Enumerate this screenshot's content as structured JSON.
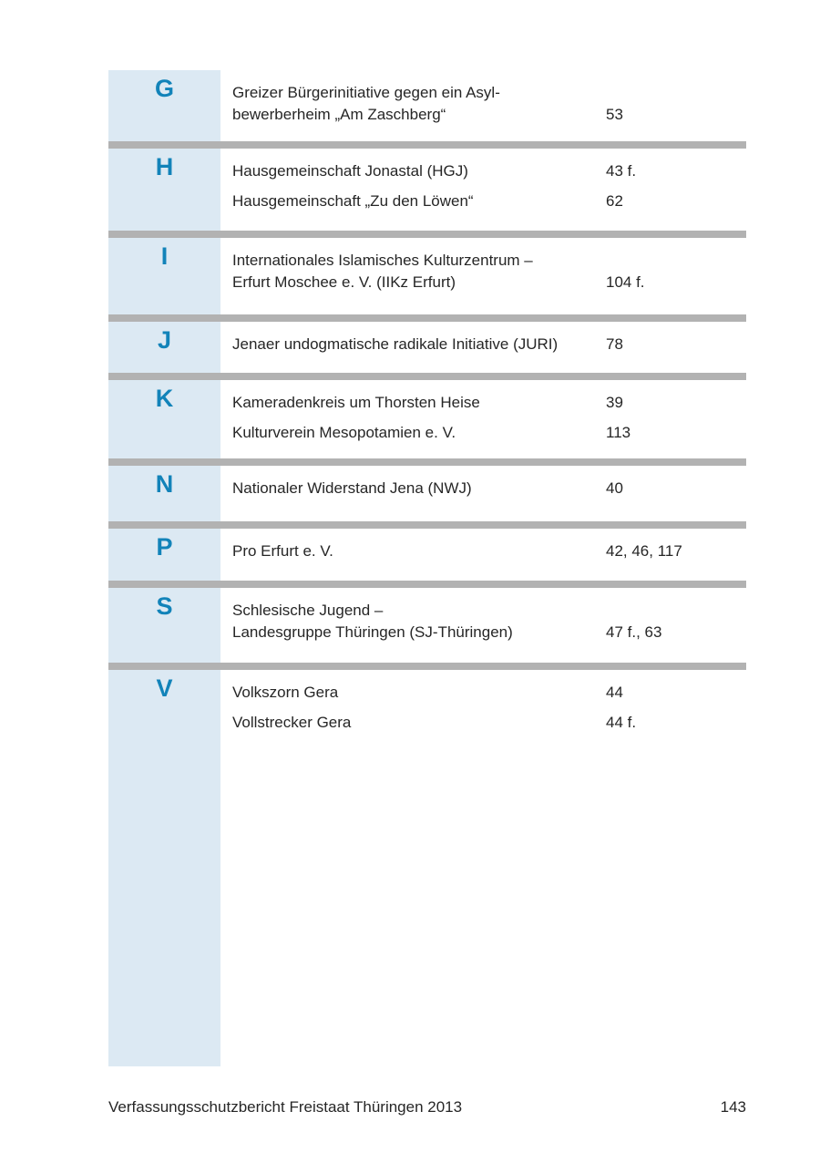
{
  "colors": {
    "letter_blue": "#1283b9",
    "strip_background": "#dce9f3",
    "divider_gray": "#b2b2b2",
    "text": "#262626"
  },
  "index": {
    "sections": [
      {
        "letter": "G",
        "entries": [
          {
            "name": "Greizer Bürgerinitiative gegen ein Asyl-\nbewerberheim „Am Zaschberg“",
            "pages": "53"
          }
        ]
      },
      {
        "letter": "H",
        "entries": [
          {
            "name": "Hausgemeinschaft Jonastal (HGJ)",
            "pages": "43 f."
          },
          {
            "name": "Hausgemeinschaft „Zu den Löwen“",
            "pages": "62"
          }
        ]
      },
      {
        "letter": "I",
        "entries": [
          {
            "name": "Internationales Islamisches Kulturzentrum –\nErfurt Moschee e. V. (IIKz Erfurt)",
            "pages": "104 f."
          }
        ]
      },
      {
        "letter": "J",
        "entries": [
          {
            "name": "Jenaer undogmatische radikale Initiative (JURI)",
            "pages": "78"
          }
        ]
      },
      {
        "letter": "K",
        "entries": [
          {
            "name": "Kameradenkreis um Thorsten Heise",
            "pages": "39"
          },
          {
            "name": "Kulturverein Mesopotamien e. V.",
            "pages": "113"
          }
        ]
      },
      {
        "letter": "N",
        "entries": [
          {
            "name": "Nationaler Widerstand Jena (NWJ)",
            "pages": "40"
          }
        ]
      },
      {
        "letter": "P",
        "entries": [
          {
            "name": "Pro Erfurt e. V.",
            "pages": "42, 46, 117"
          }
        ]
      },
      {
        "letter": "S",
        "entries": [
          {
            "name": "Schlesische Jugend –\nLandesgruppe Thüringen (SJ-Thüringen)",
            "pages": "47 f., 63"
          }
        ]
      },
      {
        "letter": "V",
        "entries": [
          {
            "name": "Volkszorn Gera",
            "pages": "44"
          },
          {
            "name": "Vollstrecker Gera",
            "pages": "44 f."
          }
        ]
      }
    ]
  },
  "footer": {
    "title": "Verfassungsschutzbericht Freistaat Thüringen 2013",
    "page_number": "143"
  }
}
